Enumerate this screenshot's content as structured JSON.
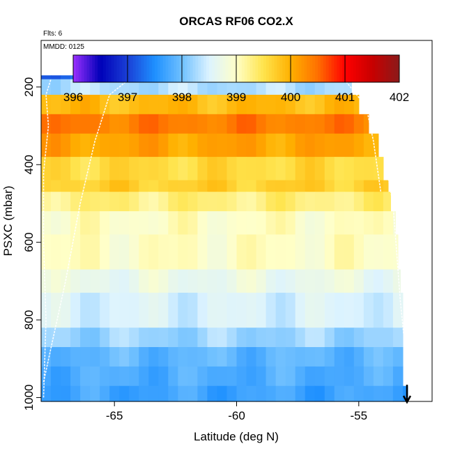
{
  "chart_data": {
    "type": "heatmap",
    "title": "ORCAS RF06 CO2.X",
    "note_flights": "Flts: 6",
    "note_date": "MMDD: 0125",
    "xlabel": "Latitude (deg N)",
    "ylabel": "PSXC (mbar)",
    "xlim": [
      -68,
      -52
    ],
    "ylim": [
      1010,
      80
    ],
    "x_ticks": [
      -65,
      -60,
      -55
    ],
    "x_tick_labels": [
      "-65",
      "-60",
      "-55"
    ],
    "y_ticks": [
      200,
      400,
      600,
      800,
      1000
    ],
    "y_tick_labels": [
      "200",
      "400",
      "600",
      "800",
      "1000"
    ],
    "colorbar": {
      "min": 396,
      "max": 402,
      "ticks": [
        396,
        397,
        398,
        399,
        400,
        401,
        402
      ],
      "tick_labels": [
        "396",
        "397",
        "398",
        "399",
        "400",
        "401",
        "402"
      ],
      "colors": [
        "#9b30ff",
        "#0000b8",
        "#1a3fd6",
        "#1e90ff",
        "#6fc0ff",
        "#dcf3ff",
        "#ffffc8",
        "#ffe44d",
        "#ffb000",
        "#ff7000",
        "#ff0000",
        "#c80000",
        "#8b1a1a"
      ]
    },
    "layers": [
      {
        "p_top": 170,
        "p_bot": 180,
        "value": 397.3
      },
      {
        "p_top": 180,
        "p_bot": 220,
        "value": 398.3
      },
      {
        "p_top": 220,
        "p_bot": 270,
        "value": 399.9
      },
      {
        "p_top": 270,
        "p_bot": 320,
        "value": 400.4
      },
      {
        "p_top": 320,
        "p_bot": 380,
        "value": 400.1
      },
      {
        "p_top": 380,
        "p_bot": 440,
        "value": 399.6
      },
      {
        "p_top": 440,
        "p_bot": 470,
        "value": 399.7
      },
      {
        "p_top": 470,
        "p_bot": 520,
        "value": 399.3
      },
      {
        "p_top": 520,
        "p_bot": 580,
        "value": 399.0
      },
      {
        "p_top": 580,
        "p_bot": 670,
        "value": 399.0
      },
      {
        "p_top": 670,
        "p_bot": 730,
        "value": 398.7
      },
      {
        "p_top": 730,
        "p_bot": 820,
        "value": 398.5
      },
      {
        "p_top": 820,
        "p_bot": 870,
        "value": 398.2
      },
      {
        "p_top": 870,
        "p_bot": 920,
        "value": 397.9
      },
      {
        "p_top": 920,
        "p_bot": 970,
        "value": 397.8
      },
      {
        "p_top": 970,
        "p_bot": 1010,
        "value": 397.7
      }
    ],
    "coverage": [
      {
        "p": 170,
        "lat_max": -55.3
      },
      {
        "p": 220,
        "lat_max": -55.0
      },
      {
        "p": 270,
        "lat_max": -54.6
      },
      {
        "p": 320,
        "lat_max": -54.2
      },
      {
        "p": 380,
        "lat_max": -54.0
      },
      {
        "p": 440,
        "lat_max": -53.8
      },
      {
        "p": 470,
        "lat_max": -53.7
      },
      {
        "p": 520,
        "lat_max": -53.5
      },
      {
        "p": 580,
        "lat_max": -53.4
      },
      {
        "p": 670,
        "lat_max": -53.3
      },
      {
        "p": 730,
        "lat_max": -53.2
      },
      {
        "p": 820,
        "lat_max": -53.2
      },
      {
        "p": 870,
        "lat_max": -53.2
      },
      {
        "p": 920,
        "lat_max": -53.2
      },
      {
        "p": 970,
        "lat_max": -53.0
      }
    ],
    "grid": false
  }
}
